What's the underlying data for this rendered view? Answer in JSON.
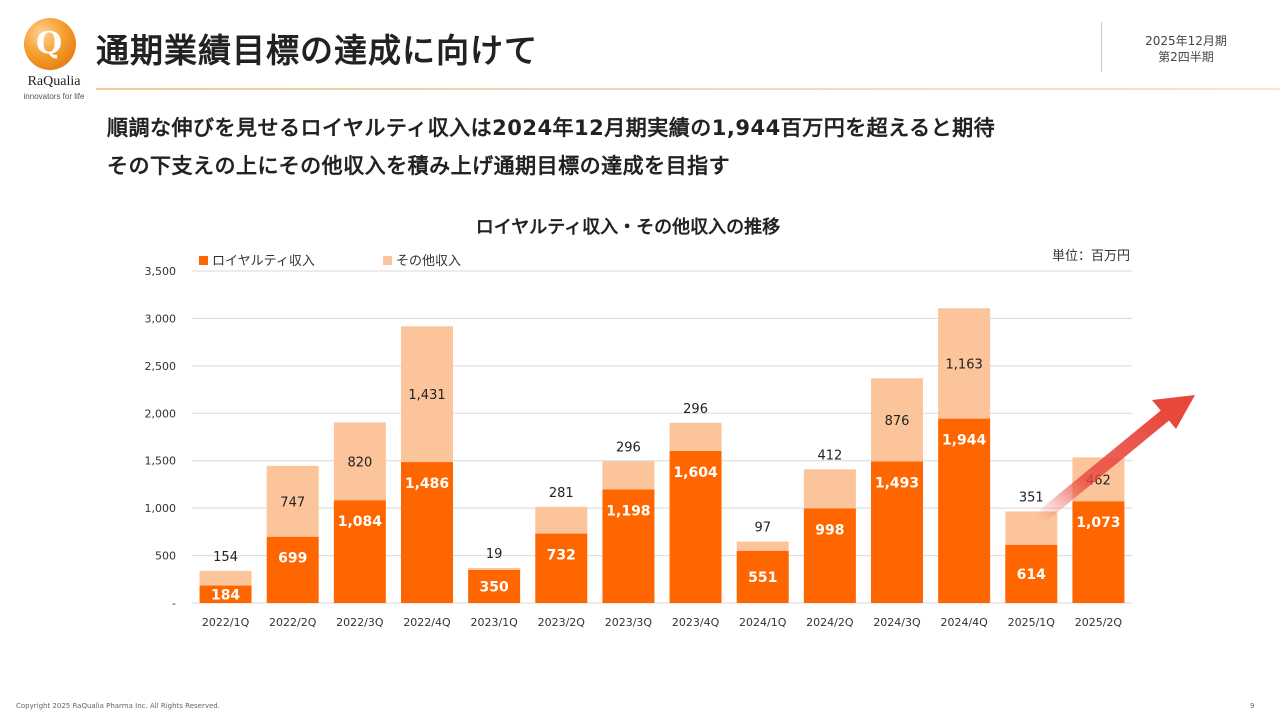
{
  "logo": {
    "name": "RaQualia",
    "tagline": "innovators for life"
  },
  "header": {
    "title": "通期業績目標の達成に向けて",
    "period_line1": "2025年12月期",
    "period_line2": "第2四半期"
  },
  "headlines": [
    "順調な伸びを見せるロイヤルティ収入は2024年12月期実績の1,944百万円を超えると期待",
    "その下支えの上にその他収入を積み上げ通期目標の達成を目指す"
  ],
  "footer": {
    "copyright": "Copyright 2025 RaQualia Pharma Inc. All Rights Reserved.",
    "page": "9"
  },
  "colors": {
    "royalty": "#ff6600",
    "other": "#fbc49a",
    "arrow": "#e8473c",
    "grid": "#d9d9d9",
    "accent": "#f7a233"
  },
  "chart_data": {
    "type": "bar",
    "stacked": true,
    "title": "ロイヤルティ収入・その他収入の推移",
    "unit_label": "単位：百万円",
    "categories": [
      "2022/1Q",
      "2022/2Q",
      "2022/3Q",
      "2022/4Q",
      "2023/1Q",
      "2023/2Q",
      "2023/3Q",
      "2023/4Q",
      "2024/1Q",
      "2024/2Q",
      "2024/3Q",
      "2024/4Q",
      "2025/1Q",
      "2025/2Q"
    ],
    "series": [
      {
        "name": "ロイヤルティ収入",
        "values": [
          184,
          699,
          1084,
          1486,
          350,
          732,
          1198,
          1604,
          551,
          998,
          1493,
          1944,
          614,
          1073
        ]
      },
      {
        "name": "その他収入",
        "values": [
          154,
          747,
          820,
          1431,
          19,
          281,
          296,
          296,
          97,
          412,
          876,
          1163,
          351,
          462
        ]
      }
    ],
    "value_labels": {
      "royalty": [
        "184",
        "699",
        "1,084",
        "1,486",
        "350",
        "732",
        "1,198",
        "1,604",
        "551",
        "998",
        "1,493",
        "1,944",
        "614",
        "1,073"
      ],
      "other": [
        "154",
        "747",
        "820",
        "1,431",
        "19",
        "281",
        "296",
        "296",
        "97",
        "412",
        "876",
        "1,163",
        "351",
        "462"
      ]
    },
    "ylim": [
      0,
      3500
    ],
    "yticks": [
      0,
      500,
      1000,
      1500,
      2000,
      2500,
      3000,
      3500
    ],
    "ytick_labels": [
      "-",
      "500",
      "1,000",
      "1,500",
      "2,000",
      "2,500",
      "3,000",
      "3,500"
    ],
    "grid": true,
    "legend_position": "top-left"
  }
}
